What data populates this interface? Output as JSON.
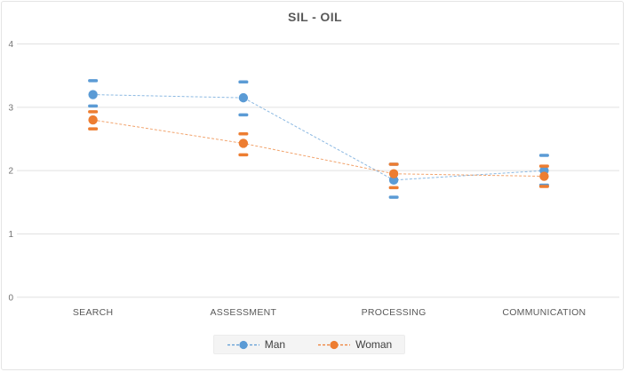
{
  "window": {
    "background_color": "#ffffff",
    "border_color": "#e4e4e4"
  },
  "chart_data": {
    "type": "line",
    "title": "SIL - OIL",
    "categories": [
      "SEARCH",
      "ASSESSMENT",
      "PROCESSING",
      "COMMUNICATION"
    ],
    "series": [
      {
        "name": "Man",
        "color": "#5B9BD5",
        "values": [
          3.2,
          3.15,
          1.85,
          2.0
        ],
        "error_upper": [
          3.42,
          3.4,
          2.1,
          2.24
        ],
        "error_lower": [
          3.02,
          2.88,
          1.58,
          1.77
        ]
      },
      {
        "name": "Woman",
        "color": "#ED7D31",
        "values": [
          2.8,
          2.43,
          1.95,
          1.91
        ],
        "error_upper": [
          2.93,
          2.58,
          2.1,
          2.07
        ],
        "error_lower": [
          2.66,
          2.25,
          1.73,
          1.75
        ]
      }
    ],
    "xlabel": "",
    "ylabel": "",
    "ylim": [
      0,
      4
    ],
    "yticks": [
      0,
      1,
      2,
      3,
      4
    ],
    "grid": true,
    "gridline_color": "#e0e0e0",
    "line_style": "dashed",
    "marker": "circle",
    "error_bars": "caps-only",
    "legend_position": "bottom"
  }
}
